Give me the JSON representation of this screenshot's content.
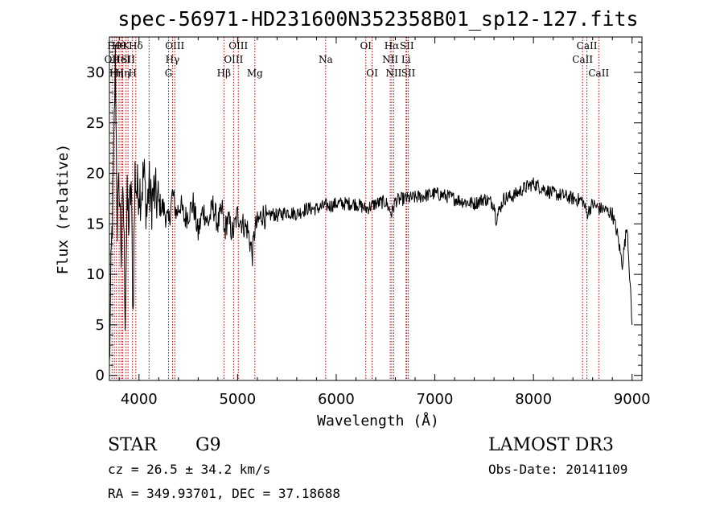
{
  "chart_data": {
    "type": "line",
    "title": "spec-56971-HD231600N352358B01_sp12-127.fits",
    "xlabel": "Wavelength (Å)",
    "ylabel": "Flux (relative)",
    "xlim": [
      3700,
      9100
    ],
    "ylim": [
      -0.5,
      33.5
    ],
    "xticks": [
      4000,
      5000,
      6000,
      7000,
      8000,
      9000
    ],
    "yticks": [
      0,
      5,
      10,
      15,
      20,
      25,
      30
    ],
    "grid": false,
    "series": [
      {
        "x": [
          3700,
          3720,
          3740,
          3760,
          3780,
          3800,
          3820,
          3840,
          3860,
          3880,
          3900,
          3920,
          3940,
          3960,
          3980,
          4000,
          4020,
          4050,
          4080,
          4100,
          4120,
          4150,
          4200,
          4250,
          4300,
          4340,
          4380,
          4420,
          4460,
          4500,
          4550,
          4600,
          4650,
          4700,
          4750,
          4800,
          4850,
          4861,
          4900,
          4950,
          5000,
          5050,
          5100,
          5150,
          5175,
          5200,
          5250,
          5300,
          5350,
          5400,
          5500,
          5600,
          5700,
          5800,
          5890,
          5950,
          6000,
          6100,
          6200,
          6300,
          6400,
          6500,
          6563,
          6600,
          6700,
          6800,
          6900,
          7000,
          7100,
          7200,
          7300,
          7400,
          7500,
          7600,
          7620,
          7700,
          7800,
          7900,
          8000,
          8100,
          8200,
          8300,
          8400,
          8500,
          8542,
          8600,
          8662,
          8700,
          8800,
          8850,
          8900,
          8950,
          9000
        ],
        "y": [
          0.5,
          12,
          19,
          31,
          15,
          19,
          12,
          18,
          6.5,
          17,
          15,
          19,
          6,
          20,
          18,
          19,
          18,
          20,
          16,
          19,
          17,
          18,
          17,
          16.5,
          15,
          18,
          16,
          17,
          15.5,
          16,
          17,
          14,
          16.5,
          15,
          16.8,
          15,
          16.5,
          14,
          15.5,
          14,
          16,
          15,
          14.5,
          12,
          14.5,
          15,
          16,
          15.5,
          16,
          15.8,
          16.2,
          16,
          16.5,
          16.5,
          16.8,
          16.8,
          17,
          17,
          17,
          16.5,
          17,
          17.2,
          16,
          17.3,
          17.5,
          17.6,
          17.8,
          18,
          17.8,
          17.5,
          17.2,
          17,
          17.5,
          17,
          15.5,
          17.5,
          17.8,
          18.5,
          19,
          18.5,
          18,
          17.8,
          17.5,
          17.3,
          16,
          17,
          16.5,
          16.5,
          16,
          14,
          11,
          15,
          5
        ]
      }
    ],
    "lines": [
      {
        "wl": 3727,
        "label": "OII",
        "row": 2
      },
      {
        "wl": 3750,
        "label": "Hθ",
        "row": 1
      },
      {
        "wl": 3771,
        "label": "Hη",
        "row": 3
      },
      {
        "wl": 3798,
        "label": "Hθ",
        "row": 1
      },
      {
        "wl": 3820,
        "label": "HeI",
        "row": 2
      },
      {
        "wl": 3835,
        "label": "Hη",
        "row": 3
      },
      {
        "wl": 3869,
        "label": "K",
        "row": 1
      },
      {
        "wl": 3889,
        "label": "SII",
        "row": 2
      },
      {
        "wl": 3934,
        "label": "H",
        "row": 3
      },
      {
        "wl": 3968,
        "label": "Hδ",
        "row": 1
      },
      {
        "wl": 4102,
        "label": "",
        "row": 1
      },
      {
        "wl": 4300,
        "label": "G",
        "row": 3
      },
      {
        "wl": 4340,
        "label": "Hγ",
        "row": 2
      },
      {
        "wl": 4363,
        "label": "OIII",
        "row": 1
      },
      {
        "wl": 4861,
        "label": "Hβ",
        "row": 3
      },
      {
        "wl": 4959,
        "label": "OIII",
        "row": 2
      },
      {
        "wl": 5007,
        "label": "OIII",
        "row": 1
      },
      {
        "wl": 5175,
        "label": "Mg",
        "row": 3
      },
      {
        "wl": 5893,
        "label": "Na",
        "row": 2
      },
      {
        "wl": 6300,
        "label": "OI",
        "row": 1
      },
      {
        "wl": 6364,
        "label": "OI",
        "row": 3
      },
      {
        "wl": 6548,
        "label": "NII",
        "row": 2
      },
      {
        "wl": 6563,
        "label": "Hα",
        "row": 1
      },
      {
        "wl": 6583,
        "label": "NII",
        "row": 3
      },
      {
        "wl": 6708,
        "label": "Li",
        "row": 2
      },
      {
        "wl": 6716,
        "label": "SII",
        "row": 1
      },
      {
        "wl": 6731,
        "label": "SII",
        "row": 3
      },
      {
        "wl": 8498,
        "label": "CaII",
        "row": 2
      },
      {
        "wl": 8542,
        "label": "CaII",
        "row": 1
      },
      {
        "wl": 8662,
        "label": "CaII",
        "row": 3
      }
    ]
  },
  "info": {
    "class_label": "STAR",
    "subclass": "G9",
    "cz": "cz = 26.5 ± 34.2 km/s",
    "radec": "RA = 349.93701, DEC =  37.18688",
    "survey": "LAMOST DR3",
    "obsdate": "Obs-Date: 20141109"
  },
  "colors": {
    "spectrum": "#000000",
    "line_marker": "#b00000"
  }
}
